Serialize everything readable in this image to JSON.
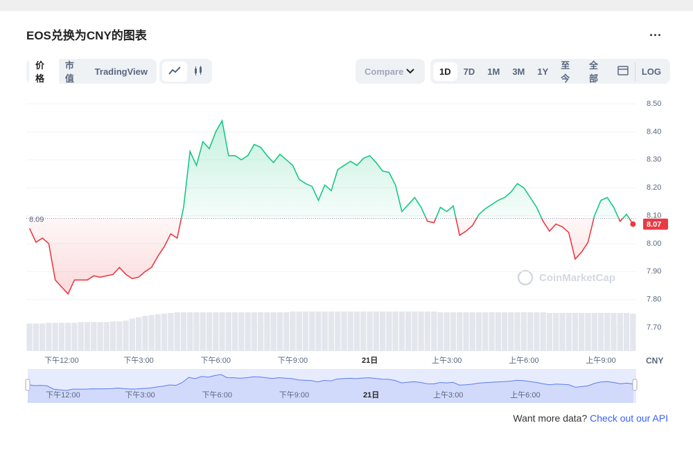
{
  "header": {
    "title": "EOS兑换为CNY的图表",
    "menu": "..."
  },
  "tabs": [
    "价格",
    "市值",
    "TradingView"
  ],
  "compare": "Compare",
  "ranges": [
    "1D",
    "7D",
    "1M",
    "3M",
    "1Y",
    "至今",
    "全部"
  ],
  "log": "LOG",
  "footer": {
    "text": "Want more data?",
    "link": "Check out our API"
  },
  "watermark": "CoinMarketCap",
  "chart_data": {
    "type": "line",
    "series": [
      {
        "name": "EOS",
        "color_up": "#16c784",
        "color_down": "#ea3943",
        "values": [
          8.055,
          8.005,
          8.02,
          8.0,
          7.87,
          7.845,
          7.82,
          7.87,
          7.87,
          7.87,
          7.885,
          7.88,
          7.885,
          7.89,
          7.915,
          7.89,
          7.875,
          7.88,
          7.9,
          7.915,
          7.955,
          7.99,
          8.035,
          8.02,
          8.13,
          8.33,
          8.28,
          8.365,
          8.34,
          8.4,
          8.44,
          8.315,
          8.315,
          8.3,
          8.315,
          8.355,
          8.345,
          8.315,
          8.29,
          8.32,
          8.3,
          8.28,
          8.23,
          8.215,
          8.205,
          8.155,
          8.21,
          8.19,
          8.265,
          8.28,
          8.295,
          8.28,
          8.305,
          8.315,
          8.29,
          8.26,
          8.255,
          8.21,
          8.115,
          8.14,
          8.165,
          8.13,
          8.08,
          8.075,
          8.13,
          8.115,
          8.135,
          8.03,
          8.045,
          8.065,
          8.105,
          8.125,
          8.14,
          8.155,
          8.165,
          8.185,
          8.215,
          8.2,
          8.165,
          8.13,
          8.08,
          8.045,
          8.07,
          8.06,
          8.04,
          7.945,
          7.97,
          8.005,
          8.1,
          8.155,
          8.165,
          8.13,
          8.08,
          8.105,
          8.07
        ]
      }
    ],
    "volume": [
      39,
      39,
      39,
      40,
      40,
      40,
      40,
      40,
      41,
      41,
      41,
      41,
      41,
      42,
      42,
      43,
      46,
      48,
      50,
      51,
      52,
      53,
      54,
      55,
      55,
      55,
      55,
      55,
      55,
      55,
      55,
      55,
      55,
      55,
      55,
      55,
      55,
      55,
      55,
      55,
      55,
      56,
      56,
      56,
      56,
      56,
      56,
      56,
      56,
      56,
      56,
      56,
      56,
      56,
      56,
      56,
      56,
      56,
      56,
      56,
      56,
      56,
      56,
      56,
      55,
      55,
      55,
      55,
      55,
      55,
      55,
      55,
      55,
      55,
      55,
      55,
      55,
      55,
      55,
      55,
      55,
      54,
      54,
      54,
      54,
      54,
      54,
      54,
      54,
      54,
      54,
      54,
      54,
      54,
      53
    ],
    "baseline": 8.09,
    "ylim": [
      7.616,
      8.525
    ],
    "yticks": [
      7.7,
      7.8,
      7.9,
      {
        "value": 8.0,
        "label": "8.00"
      },
      8.1,
      8.2,
      8.3,
      8.4,
      {
        "value": 8.5,
        "label": "8.50"
      }
    ],
    "yticks_fmt": [
      "7.70",
      "7.80",
      "7.90",
      "8.00",
      "8.10",
      "8.20",
      "8.30",
      "8.40",
      "8.50"
    ],
    "xlim": [
      -0.5,
      94.5
    ],
    "xticks": [
      {
        "value": 5,
        "label": "下午12:00"
      },
      {
        "value": 17,
        "label": "下午3:00"
      },
      {
        "value": 29,
        "label": "下午6:00"
      },
      {
        "value": 41,
        "label": "下午9:00"
      },
      {
        "value": 53,
        "label": "21日"
      },
      {
        "value": 65,
        "label": "上午3:00"
      },
      {
        "value": 77,
        "label": "上午6:00"
      },
      {
        "value": 89,
        "label": "上午9:00"
      }
    ],
    "currency": "CNY",
    "grid": true
  }
}
